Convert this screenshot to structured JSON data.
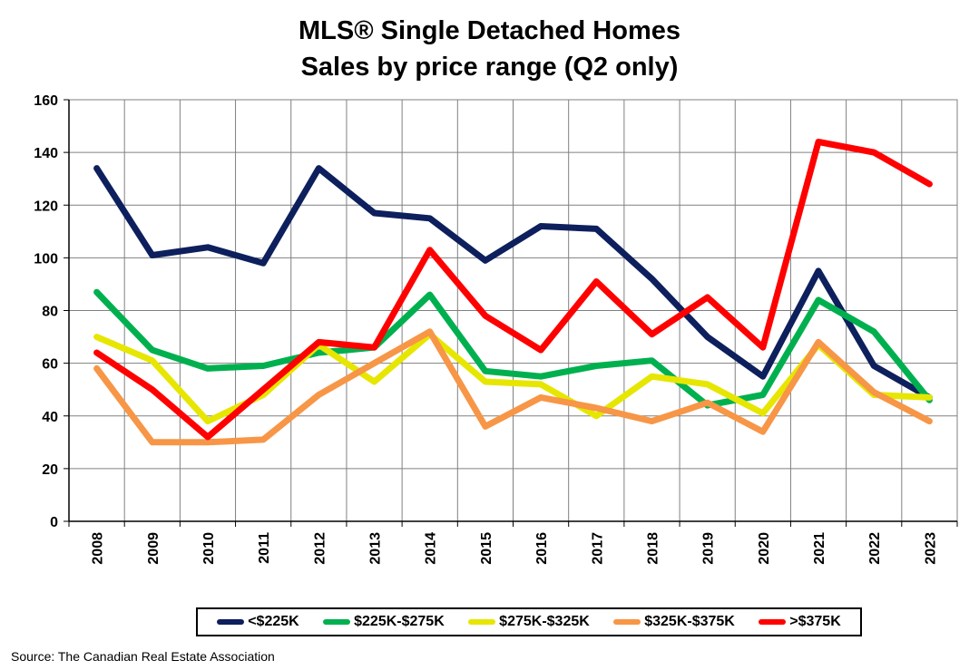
{
  "title_lines": [
    "MLS® Single Detached Homes",
    "Sales by price range (Q2 only)"
  ],
  "source": "Source: The Canadian Real Estate Association",
  "chart_data": {
    "type": "line",
    "title": "MLS® Single Detached Homes Sales by price range (Q2 only)",
    "xlabel": "",
    "ylabel": "",
    "ylim": [
      0,
      160
    ],
    "yticks": [
      0,
      20,
      40,
      60,
      80,
      100,
      120,
      140,
      160
    ],
    "grid": true,
    "legend_position": "bottom",
    "x": [
      "2008",
      "2009",
      "2010",
      "2011",
      "2012",
      "2013",
      "2014",
      "2015",
      "2016",
      "2017",
      "2018",
      "2019",
      "2020",
      "2021",
      "2022",
      "2023"
    ],
    "series": [
      {
        "name": "<$225K",
        "color": "#0d1f5c",
        "values": [
          134,
          101,
          104,
          98,
          134,
          117,
          115,
          99,
          112,
          111,
          92,
          70,
          55,
          95,
          59,
          47
        ]
      },
      {
        "name": "$225K-$275K",
        "color": "#00b04f",
        "values": [
          87,
          65,
          58,
          59,
          64,
          66,
          86,
          57,
          55,
          59,
          61,
          44,
          48,
          84,
          72,
          46
        ]
      },
      {
        "name": "$275K-$325K",
        "color": "#e6e600",
        "values": [
          70,
          61,
          38,
          48,
          67,
          53,
          71,
          53,
          52,
          40,
          55,
          52,
          41,
          67,
          48,
          47
        ]
      },
      {
        "name": "$325K-$375K",
        "color": "#f79646",
        "values": [
          58,
          30,
          30,
          31,
          48,
          60,
          72,
          36,
          47,
          43,
          38,
          45,
          34,
          68,
          49,
          38
        ]
      },
      {
        "name": ">$375K",
        "color": "#ff0000",
        "values": [
          64,
          50,
          32,
          50,
          68,
          66,
          103,
          78,
          65,
          91,
          71,
          85,
          66,
          144,
          140,
          128
        ]
      }
    ]
  }
}
